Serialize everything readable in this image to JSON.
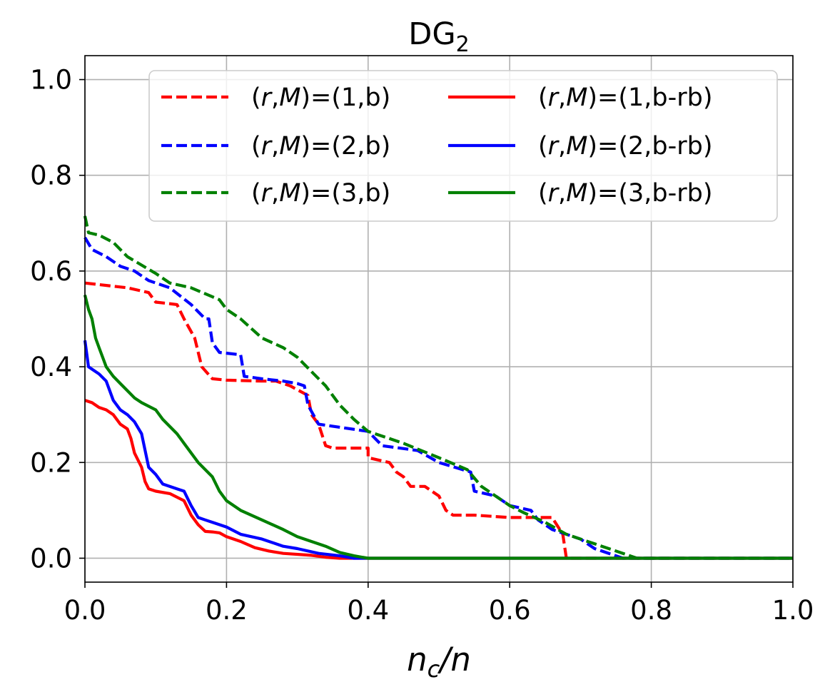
{
  "chart_data": {
    "type": "line",
    "title_main": "DG",
    "title_sub": "2",
    "xlabel_parts": [
      "n",
      "c",
      "/n"
    ],
    "xlim": [
      0.0,
      1.0
    ],
    "ylim": [
      -0.05,
      1.05
    ],
    "xticks": [
      0.0,
      0.2,
      0.4,
      0.6,
      0.8,
      1.0
    ],
    "xtick_labels": [
      "0.0",
      "0.2",
      "0.4",
      "0.6",
      "0.8",
      "1.0"
    ],
    "yticks": [
      0.0,
      0.2,
      0.4,
      0.6,
      0.8,
      1.0
    ],
    "ytick_labels": [
      "0.0",
      "0.2",
      "0.4",
      "0.6",
      "0.8",
      "1.0"
    ],
    "grid": true,
    "legend_position": "top-right",
    "legend_prefix": "(r,M)=",
    "series": [
      {
        "name": "(r,M)=(1,b)",
        "args": "(1,b)",
        "color": "#ff0000",
        "dash": "dashed",
        "points": [
          [
            0.0,
            0.575
          ],
          [
            0.06,
            0.565
          ],
          [
            0.09,
            0.555
          ],
          [
            0.1,
            0.535
          ],
          [
            0.13,
            0.53
          ],
          [
            0.14,
            0.5
          ],
          [
            0.155,
            0.46
          ],
          [
            0.165,
            0.4
          ],
          [
            0.18,
            0.375
          ],
          [
            0.2,
            0.372
          ],
          [
            0.25,
            0.37
          ],
          [
            0.27,
            0.37
          ],
          [
            0.29,
            0.36
          ],
          [
            0.3,
            0.352
          ],
          [
            0.315,
            0.34
          ],
          [
            0.32,
            0.3
          ],
          [
            0.33,
            0.28
          ],
          [
            0.34,
            0.235
          ],
          [
            0.35,
            0.23
          ],
          [
            0.4,
            0.23
          ],
          [
            0.4,
            0.21
          ],
          [
            0.43,
            0.2
          ],
          [
            0.44,
            0.18
          ],
          [
            0.45,
            0.17
          ],
          [
            0.46,
            0.15
          ],
          [
            0.48,
            0.15
          ],
          [
            0.5,
            0.13
          ],
          [
            0.51,
            0.1
          ],
          [
            0.52,
            0.09
          ],
          [
            0.55,
            0.09
          ],
          [
            0.6,
            0.085
          ],
          [
            0.66,
            0.085
          ],
          [
            0.675,
            0.05
          ],
          [
            0.68,
            0.0
          ],
          [
            1.0,
            0.0
          ]
        ]
      },
      {
        "name": "(r,M)=(2,b)",
        "args": "(2,b)",
        "color": "#0000ff",
        "dash": "dashed",
        "points": [
          [
            0.0,
            0.67
          ],
          [
            0.01,
            0.645
          ],
          [
            0.03,
            0.63
          ],
          [
            0.05,
            0.61
          ],
          [
            0.07,
            0.6
          ],
          [
            0.09,
            0.58
          ],
          [
            0.12,
            0.565
          ],
          [
            0.15,
            0.53
          ],
          [
            0.17,
            0.5
          ],
          [
            0.175,
            0.5
          ],
          [
            0.18,
            0.45
          ],
          [
            0.19,
            0.43
          ],
          [
            0.22,
            0.425
          ],
          [
            0.225,
            0.38
          ],
          [
            0.25,
            0.375
          ],
          [
            0.28,
            0.37
          ],
          [
            0.3,
            0.365
          ],
          [
            0.31,
            0.36
          ],
          [
            0.315,
            0.32
          ],
          [
            0.33,
            0.28
          ],
          [
            0.4,
            0.265
          ],
          [
            0.42,
            0.235
          ],
          [
            0.47,
            0.225
          ],
          [
            0.5,
            0.2
          ],
          [
            0.545,
            0.18
          ],
          [
            0.55,
            0.14
          ],
          [
            0.58,
            0.13
          ],
          [
            0.6,
            0.11
          ],
          [
            0.63,
            0.1
          ],
          [
            0.64,
            0.08
          ],
          [
            0.66,
            0.06
          ],
          [
            0.7,
            0.04
          ],
          [
            0.72,
            0.02
          ],
          [
            0.75,
            0.005
          ],
          [
            0.76,
            0.0
          ],
          [
            1.0,
            0.0
          ]
        ]
      },
      {
        "name": "(r,M)=(3,b)",
        "args": "(3,b)",
        "color": "#008000",
        "dash": "dashed",
        "points": [
          [
            0.0,
            0.715
          ],
          [
            0.005,
            0.68
          ],
          [
            0.02,
            0.675
          ],
          [
            0.04,
            0.66
          ],
          [
            0.06,
            0.63
          ],
          [
            0.1,
            0.595
          ],
          [
            0.12,
            0.575
          ],
          [
            0.15,
            0.565
          ],
          [
            0.19,
            0.54
          ],
          [
            0.2,
            0.52
          ],
          [
            0.22,
            0.5
          ],
          [
            0.25,
            0.46
          ],
          [
            0.28,
            0.44
          ],
          [
            0.3,
            0.42
          ],
          [
            0.32,
            0.39
          ],
          [
            0.34,
            0.36
          ],
          [
            0.36,
            0.32
          ],
          [
            0.38,
            0.29
          ],
          [
            0.4,
            0.265
          ],
          [
            0.45,
            0.24
          ],
          [
            0.5,
            0.21
          ],
          [
            0.54,
            0.185
          ],
          [
            0.56,
            0.15
          ],
          [
            0.6,
            0.11
          ],
          [
            0.62,
            0.095
          ],
          [
            0.65,
            0.075
          ],
          [
            0.68,
            0.05
          ],
          [
            0.72,
            0.03
          ],
          [
            0.76,
            0.01
          ],
          [
            0.78,
            0.0
          ],
          [
            1.0,
            0.0
          ]
        ]
      },
      {
        "name": "(r,M)=(1,b-rb)",
        "args": "(1,b-rb)",
        "color": "#ff0000",
        "dash": "solid",
        "points": [
          [
            0.0,
            0.33
          ],
          [
            0.01,
            0.325
          ],
          [
            0.02,
            0.315
          ],
          [
            0.03,
            0.31
          ],
          [
            0.04,
            0.3
          ],
          [
            0.05,
            0.28
          ],
          [
            0.06,
            0.27
          ],
          [
            0.065,
            0.25
          ],
          [
            0.07,
            0.22
          ],
          [
            0.08,
            0.19
          ],
          [
            0.085,
            0.16
          ],
          [
            0.09,
            0.145
          ],
          [
            0.1,
            0.14
          ],
          [
            0.12,
            0.135
          ],
          [
            0.14,
            0.12
          ],
          [
            0.15,
            0.09
          ],
          [
            0.16,
            0.07
          ],
          [
            0.17,
            0.056
          ],
          [
            0.18,
            0.055
          ],
          [
            0.19,
            0.053
          ],
          [
            0.2,
            0.045
          ],
          [
            0.22,
            0.035
          ],
          [
            0.24,
            0.022
          ],
          [
            0.26,
            0.015
          ],
          [
            0.28,
            0.01
          ],
          [
            0.32,
            0.006
          ],
          [
            0.34,
            0.002
          ],
          [
            0.36,
            0.0
          ],
          [
            1.0,
            0.0
          ]
        ]
      },
      {
        "name": "(r,M)=(2,b-rb)",
        "args": "(2,b-rb)",
        "color": "#0000ff",
        "dash": "solid",
        "points": [
          [
            0.0,
            0.455
          ],
          [
            0.005,
            0.4
          ],
          [
            0.02,
            0.385
          ],
          [
            0.03,
            0.37
          ],
          [
            0.04,
            0.33
          ],
          [
            0.05,
            0.31
          ],
          [
            0.06,
            0.3
          ],
          [
            0.07,
            0.285
          ],
          [
            0.08,
            0.26
          ],
          [
            0.09,
            0.19
          ],
          [
            0.1,
            0.175
          ],
          [
            0.11,
            0.155
          ],
          [
            0.13,
            0.145
          ],
          [
            0.14,
            0.14
          ],
          [
            0.15,
            0.11
          ],
          [
            0.16,
            0.085
          ],
          [
            0.17,
            0.08
          ],
          [
            0.18,
            0.075
          ],
          [
            0.2,
            0.065
          ],
          [
            0.22,
            0.05
          ],
          [
            0.25,
            0.04
          ],
          [
            0.28,
            0.025
          ],
          [
            0.3,
            0.02
          ],
          [
            0.33,
            0.01
          ],
          [
            0.36,
            0.005
          ],
          [
            0.38,
            0.0
          ],
          [
            1.0,
            0.0
          ]
        ]
      },
      {
        "name": "(r,M)=(3,b-rb)",
        "args": "(3,b-rb)",
        "color": "#008000",
        "dash": "solid",
        "points": [
          [
            0.0,
            0.55
          ],
          [
            0.005,
            0.52
          ],
          [
            0.01,
            0.5
          ],
          [
            0.015,
            0.46
          ],
          [
            0.02,
            0.44
          ],
          [
            0.03,
            0.4
          ],
          [
            0.04,
            0.38
          ],
          [
            0.05,
            0.365
          ],
          [
            0.06,
            0.35
          ],
          [
            0.07,
            0.335
          ],
          [
            0.08,
            0.325
          ],
          [
            0.1,
            0.31
          ],
          [
            0.11,
            0.29
          ],
          [
            0.13,
            0.26
          ],
          [
            0.15,
            0.22
          ],
          [
            0.16,
            0.2
          ],
          [
            0.18,
            0.17
          ],
          [
            0.19,
            0.14
          ],
          [
            0.2,
            0.12
          ],
          [
            0.22,
            0.1
          ],
          [
            0.25,
            0.08
          ],
          [
            0.28,
            0.06
          ],
          [
            0.3,
            0.045
          ],
          [
            0.32,
            0.035
          ],
          [
            0.34,
            0.025
          ],
          [
            0.36,
            0.012
          ],
          [
            0.38,
            0.005
          ],
          [
            0.4,
            0.0
          ],
          [
            1.0,
            0.0
          ]
        ]
      }
    ]
  }
}
